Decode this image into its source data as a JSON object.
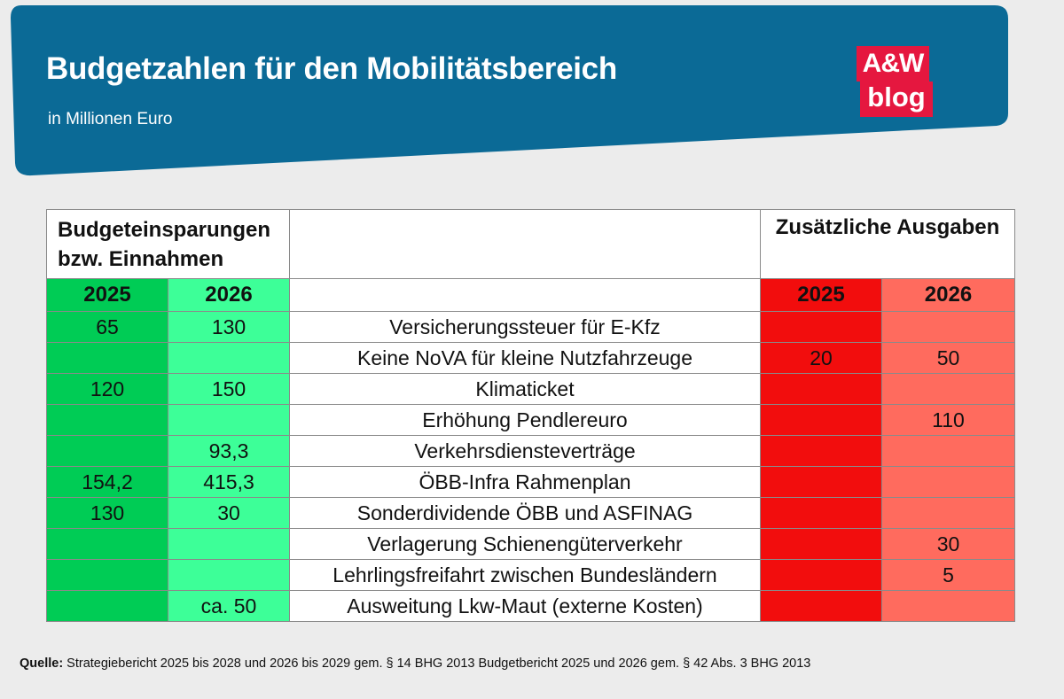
{
  "header": {
    "title": "Budgetzahlen für den Mobilitätsbereich",
    "subtitle": "in Millionen Euro",
    "logo_line1": "A&W",
    "logo_line2": "blog",
    "banner_color": "#0b6a96",
    "logo_color": "#e5173f"
  },
  "chart_data": {
    "type": "table",
    "title": "Budgetzahlen für den Mobilitätsbereich",
    "unit": "in Millionen Euro",
    "left_group_header": [
      "Budgeteinsparungen",
      "bzw. Einnahmen"
    ],
    "right_group_header": "Zusätzliche Ausgaben",
    "columns": [
      "2025",
      "2026",
      "",
      "2025",
      "2026"
    ],
    "rows": [
      {
        "label": "Versicherungssteuer für E-Kfz",
        "save_2025": "65",
        "save_2026": "130",
        "spend_2025": "",
        "spend_2026": ""
      },
      {
        "label": "Keine NoVA für kleine Nutzfahrzeuge",
        "save_2025": "",
        "save_2026": "",
        "spend_2025": "20",
        "spend_2026": "50"
      },
      {
        "label": "Klimaticket",
        "save_2025": "120",
        "save_2026": "150",
        "spend_2025": "",
        "spend_2026": ""
      },
      {
        "label": "Erhöhung Pendlereuro",
        "save_2025": "",
        "save_2026": "",
        "spend_2025": "",
        "spend_2026": "110"
      },
      {
        "label": "Verkehrsdiensteverträge",
        "save_2025": "",
        "save_2026": "93,3",
        "spend_2025": "",
        "spend_2026": ""
      },
      {
        "label": "ÖBB-Infra Rahmenplan",
        "save_2025": "154,2",
        "save_2026": "415,3",
        "spend_2025": "",
        "spend_2026": ""
      },
      {
        "label": "Sonderdividende ÖBB und ASFINAG",
        "save_2025": "130",
        "save_2026": "30",
        "spend_2025": "",
        "spend_2026": ""
      },
      {
        "label": "Verlagerung Schienengüterverkehr",
        "save_2025": "",
        "save_2026": "",
        "spend_2025": "",
        "spend_2026": "30"
      },
      {
        "label": "Lehrlingsfreifahrt zwischen Bundesländern",
        "save_2025": "",
        "save_2026": "",
        "spend_2025": "",
        "spend_2026": "5"
      },
      {
        "label": "Ausweitung Lkw-Maut (externe Kosten)",
        "save_2025": "",
        "save_2026": "ca. 50",
        "spend_2025": "",
        "spend_2026": ""
      }
    ],
    "colors": {
      "save_2025": "#00cc55",
      "save_2026": "#3dff98",
      "spend_2025": "#f20d0d",
      "spend_2026": "#ff6b5e"
    }
  },
  "footer": {
    "source_label": "Quelle:",
    "source_text": " Strategiebericht 2025 bis 2028 und 2026 bis 2029 gem. § 14 BHG 2013 Budgetbericht 2025 und 2026 gem. § 42 Abs. 3 BHG 2013"
  }
}
